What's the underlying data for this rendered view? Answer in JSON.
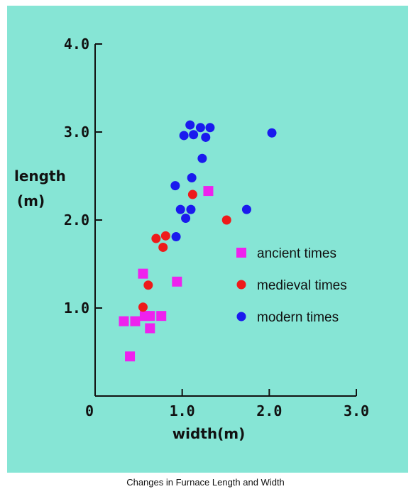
{
  "chart_data": {
    "type": "scatter",
    "title": "",
    "xlabel": "width(m)",
    "ylabel_lines": [
      "length",
      "(m)"
    ],
    "xlim": [
      0,
      3.0
    ],
    "ylim": [
      0,
      4.0
    ],
    "x_ticks": [
      {
        "value": 0,
        "label": "0"
      },
      {
        "value": 1.0,
        "label": "1.0"
      },
      {
        "value": 2.0,
        "label": "2.0"
      },
      {
        "value": 3.0,
        "label": "3.0"
      }
    ],
    "y_ticks": [
      {
        "value": 1.0,
        "label": "1.0"
      },
      {
        "value": 2.0,
        "label": "2.0"
      },
      {
        "value": 3.0,
        "label": "3.0"
      },
      {
        "value": 4.0,
        "label": "4.0"
      }
    ],
    "grid": false,
    "legend_position": "right-middle",
    "series": [
      {
        "name": "ancient times",
        "marker": "square",
        "color": "#ee22ee",
        "points": [
          [
            0.33,
            0.85
          ],
          [
            0.46,
            0.85
          ],
          [
            0.57,
            0.91
          ],
          [
            0.63,
            0.91
          ],
          [
            0.76,
            0.91
          ],
          [
            0.63,
            0.77
          ],
          [
            0.55,
            1.39
          ],
          [
            0.94,
            1.3
          ],
          [
            1.3,
            2.33
          ],
          [
            0.4,
            0.45
          ]
        ]
      },
      {
        "name": "medieval times",
        "marker": "circle",
        "color": "#ee1a1a",
        "points": [
          [
            0.55,
            1.01
          ],
          [
            0.61,
            1.26
          ],
          [
            0.7,
            1.79
          ],
          [
            0.81,
            1.82
          ],
          [
            0.78,
            1.69
          ],
          [
            1.12,
            2.29
          ],
          [
            1.51,
            2.0
          ]
        ]
      },
      {
        "name": "modern times",
        "marker": "circle",
        "color": "#1a1aee",
        "points": [
          [
            1.09,
            3.08
          ],
          [
            1.21,
            3.05
          ],
          [
            1.32,
            3.05
          ],
          [
            1.02,
            2.96
          ],
          [
            1.13,
            2.97
          ],
          [
            1.27,
            2.94
          ],
          [
            2.03,
            2.99
          ],
          [
            1.23,
            2.7
          ],
          [
            1.11,
            2.48
          ],
          [
            0.92,
            2.39
          ],
          [
            0.98,
            2.12
          ],
          [
            1.1,
            2.12
          ],
          [
            1.74,
            2.12
          ],
          [
            1.04,
            2.02
          ],
          [
            0.93,
            1.81
          ]
        ]
      }
    ]
  },
  "caption": "Changes in Furnace Length and Width"
}
